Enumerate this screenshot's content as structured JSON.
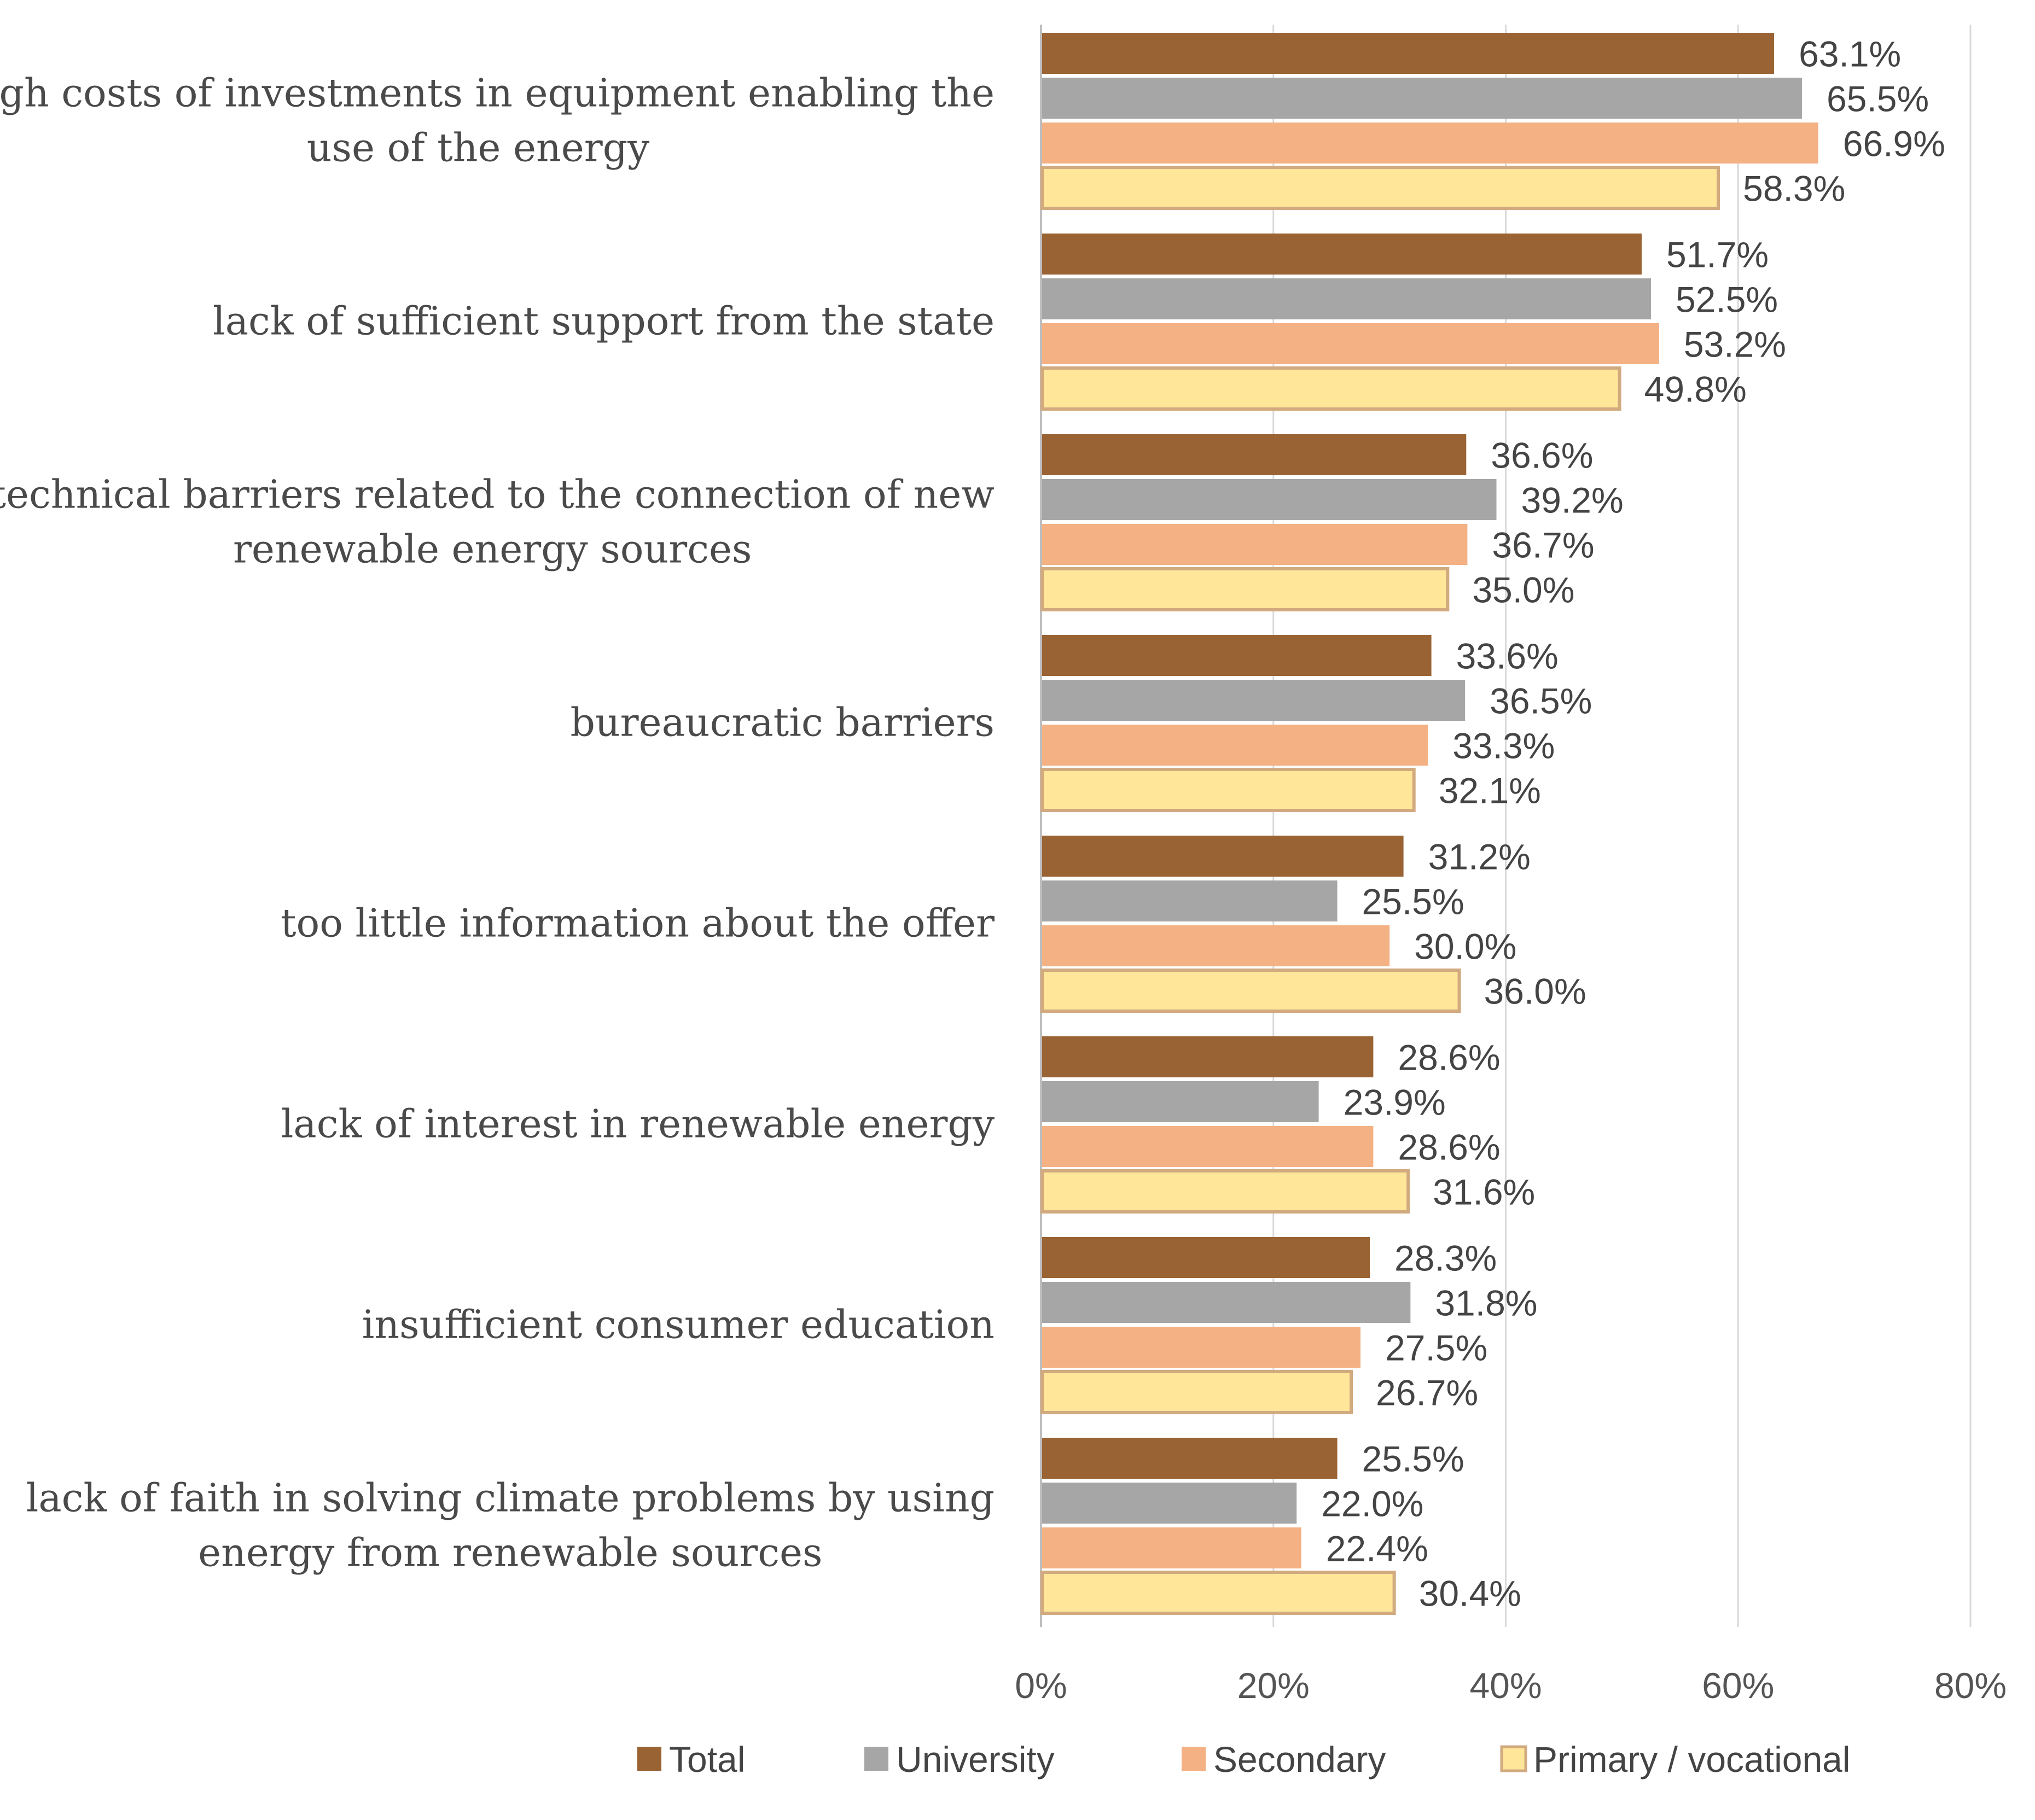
{
  "chart_data": {
    "type": "bar",
    "orientation": "horizontal",
    "title": "",
    "xlabel": "",
    "ylabel": "",
    "xlim": [
      0,
      80
    ],
    "x_ticks": [
      0,
      20,
      40,
      60,
      80
    ],
    "tick_format_suffix": "%",
    "grid": true,
    "legend_position": "bottom",
    "categories": [
      [
        "high costs of investments in equipment enabling the",
        "use of the energy"
      ],
      [
        "lack of sufficient support from the state"
      ],
      [
        "technical barriers related to the connection of new",
        "renewable energy sources"
      ],
      [
        "bureaucratic barriers"
      ],
      [
        "too little information about the offer"
      ],
      [
        "lack of interest in renewable energy"
      ],
      [
        "insufficient  consumer education"
      ],
      [
        "lack of faith in solving climate problems by using",
        "energy from renewable sources"
      ]
    ],
    "series": [
      {
        "name": "Total",
        "color": "#9a6333",
        "edge_color": "#9a6333",
        "values": [
          63.1,
          51.7,
          36.6,
          33.6,
          31.2,
          28.6,
          28.3,
          25.5
        ],
        "labels": [
          "63.1%",
          "51.7%",
          "36.6%",
          "33.6%",
          "31.2%",
          "28.6%",
          "28.3%",
          "25.5%"
        ]
      },
      {
        "name": "University",
        "color": "#a6a6a6",
        "edge_color": "#a6a6a6",
        "values": [
          65.5,
          52.5,
          39.2,
          36.5,
          25.5,
          23.9,
          31.8,
          22.0
        ],
        "labels": [
          "65.5%",
          "52.5%",
          "39.2%",
          "36.5%",
          "25.5%",
          "23.9%",
          "31.8%",
          "22.0%"
        ]
      },
      {
        "name": "Secondary",
        "color": "#f4b183",
        "edge_color": "#f4b183",
        "values": [
          66.9,
          53.2,
          36.7,
          33.3,
          30.0,
          28.6,
          27.5,
          22.4
        ],
        "labels": [
          "66.9%",
          "53.2%",
          "36.7%",
          "33.3%",
          "30.0%",
          "28.6%",
          "27.5%",
          "22.4%"
        ]
      },
      {
        "name": "Primary / vocational",
        "color": "#ffe699",
        "edge_color": "#d2aa7f",
        "values": [
          58.3,
          49.8,
          35.0,
          32.1,
          36.0,
          31.6,
          26.7,
          30.4
        ],
        "labels": [
          "58.3%",
          "49.8%",
          "35.0%",
          "32.1%",
          "36.0%",
          "31.6%",
          "26.7%",
          "30.4%"
        ]
      }
    ]
  }
}
